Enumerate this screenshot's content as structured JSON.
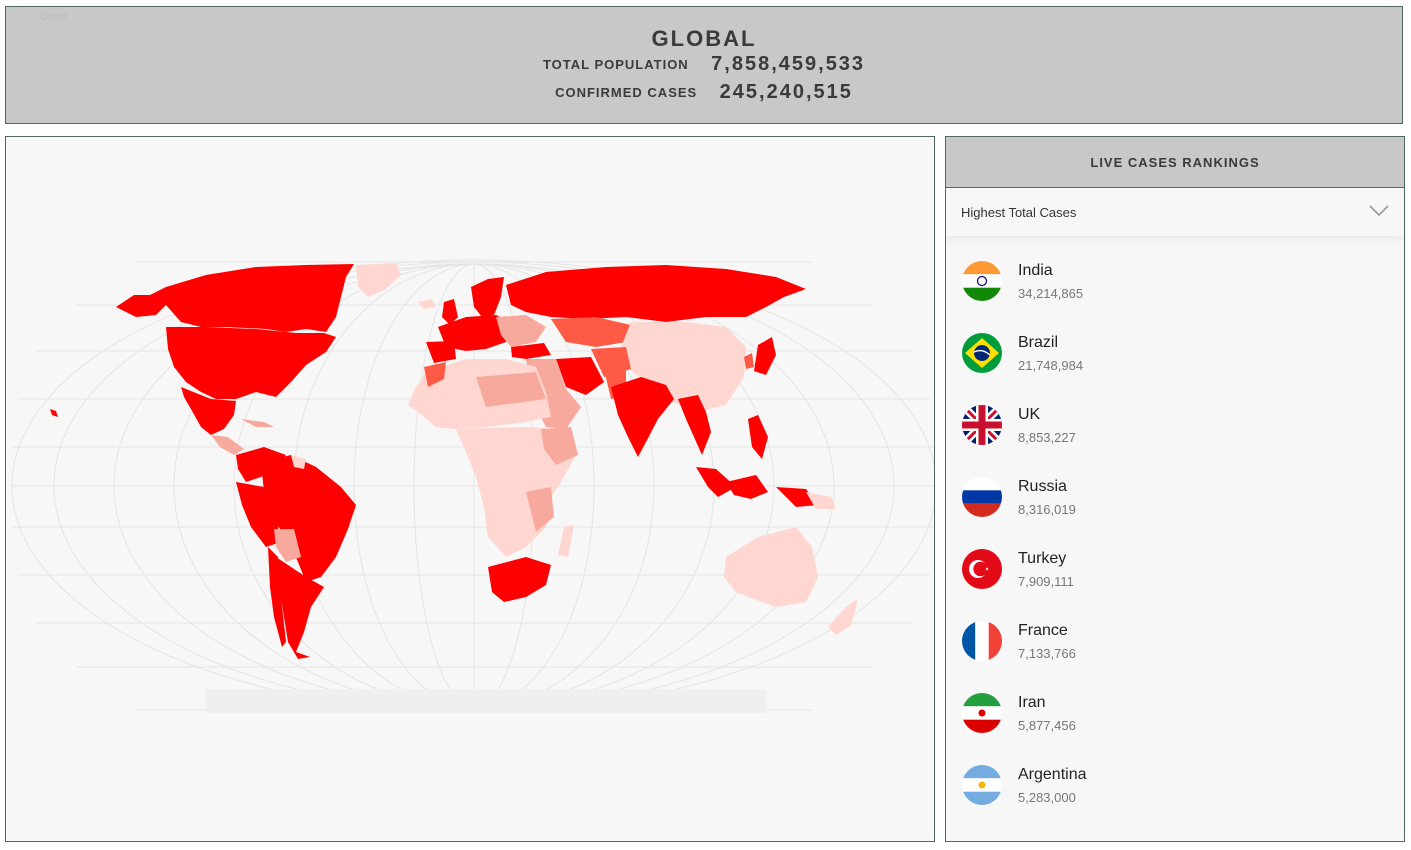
{
  "header": {
    "faint_text": "Covid",
    "title": "GLOBAL",
    "population_label": "TOTAL POPULATION",
    "population_value": "7,858,459,533",
    "confirmed_label": "CONFIRMED CASES",
    "confirmed_value": "245,240,515"
  },
  "colors": {
    "header_bg": "#c8c8c8",
    "border": "#4d6a5a",
    "panel_bg": "#f7f7f7",
    "cases_very_high": "#ff0000",
    "cases_high": "#ff5a45",
    "cases_medium": "#f8a99e",
    "cases_low": "#ffd6d0"
  },
  "map": {
    "name": "world-cases-choropleth"
  },
  "rankings": {
    "title": "LIVE CASES RANKINGS",
    "selected_filter": "Highest Total Cases",
    "items": [
      {
        "country": "India",
        "cases": "34,214,865",
        "flag": "india-flag-icon"
      },
      {
        "country": "Brazil",
        "cases": "21,748,984",
        "flag": "brazil-flag-icon"
      },
      {
        "country": "UK",
        "cases": "8,853,227",
        "flag": "uk-flag-icon"
      },
      {
        "country": "Russia",
        "cases": "8,316,019",
        "flag": "russia-flag-icon"
      },
      {
        "country": "Turkey",
        "cases": "7,909,111",
        "flag": "turkey-flag-icon"
      },
      {
        "country": "France",
        "cases": "7,133,766",
        "flag": "france-flag-icon"
      },
      {
        "country": "Iran",
        "cases": "5,877,456",
        "flag": "iran-flag-icon"
      },
      {
        "country": "Argentina",
        "cases": "5,283,000",
        "flag": "argentina-flag-icon"
      }
    ]
  }
}
